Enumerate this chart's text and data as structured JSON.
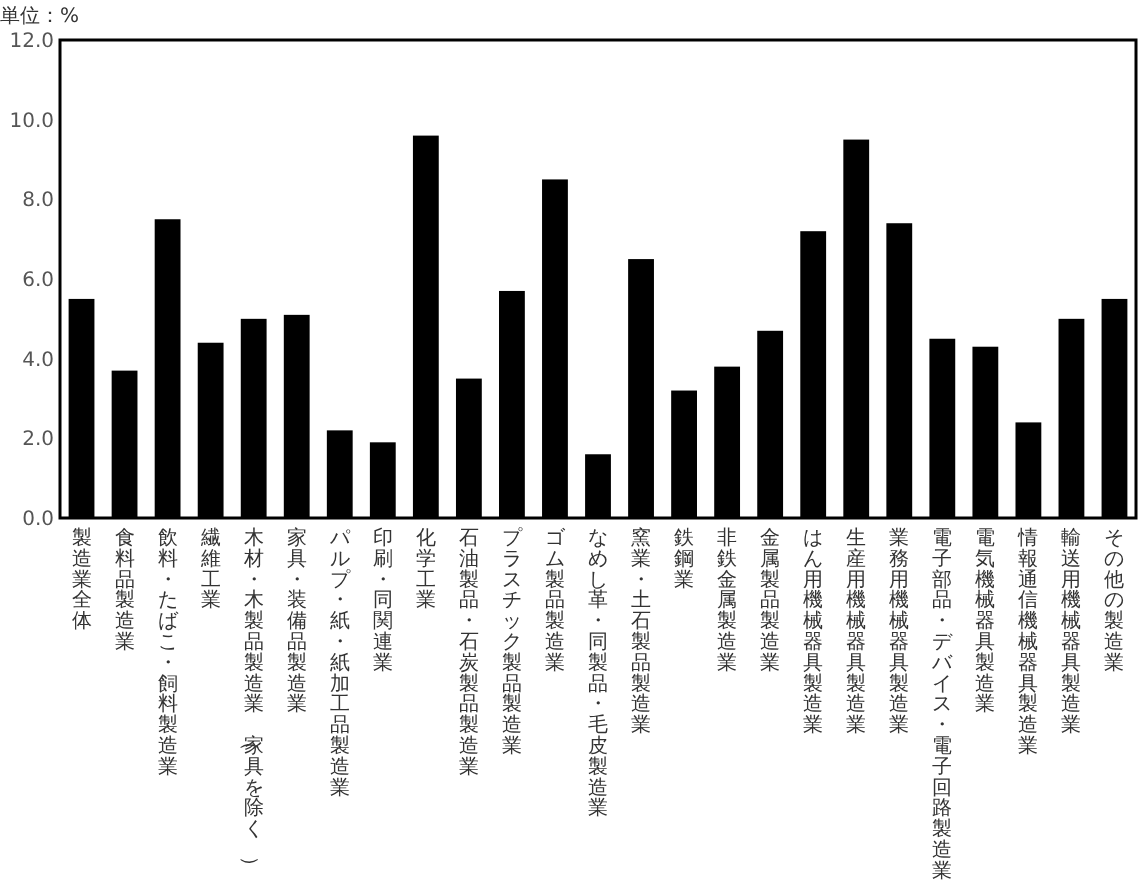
{
  "chart_data": {
    "type": "bar",
    "ylabel": "単位：%",
    "categories": [
      "製造業全体",
      "食料品製造業",
      "飲料・たばこ・飼料製造業",
      "繊維工業",
      "木材・木製品製造業（家具を除く）",
      "家具・装備品製造業",
      "パルプ・紙・紙加工品製造業",
      "印刷・同関連業",
      "化学工業",
      "石油製品・石炭製品製造業",
      "プラスチック製品製造業",
      "ゴム製品製造業",
      "なめし革・同製品・毛皮製造業",
      "窯業・土石製品製造業",
      "鉄鋼業",
      "非鉄金属製造業",
      "金属製品製造業",
      "はん用機械器具製造業",
      "生産用機械器具製造業",
      "業務用機械器具製造業",
      "電子部品・デバイス・電子回路製造業",
      "電気機械器具製造業",
      "情報通信機械器具製造業",
      "輸送用機械器具製造業",
      "その他の製造業"
    ],
    "values": [
      5.5,
      3.7,
      7.5,
      4.4,
      5.0,
      5.1,
      2.2,
      1.9,
      9.6,
      3.5,
      5.7,
      8.5,
      1.6,
      6.5,
      3.2,
      3.8,
      4.7,
      7.2,
      9.5,
      7.4,
      4.5,
      4.3,
      2.4,
      5.0,
      5.5
    ],
    "color": "#000000",
    "ylim": [
      0,
      12
    ],
    "yticks": [
      {
        "value": 0,
        "label": "0.0"
      },
      {
        "value": 2,
        "label": "2.0"
      },
      {
        "value": 4,
        "label": "4.0"
      },
      {
        "value": 6,
        "label": "6.0"
      },
      {
        "value": 8,
        "label": "8.0"
      },
      {
        "value": 10,
        "label": "10.0"
      },
      {
        "value": 12,
        "label": "12.0"
      }
    ],
    "grid": false
  }
}
